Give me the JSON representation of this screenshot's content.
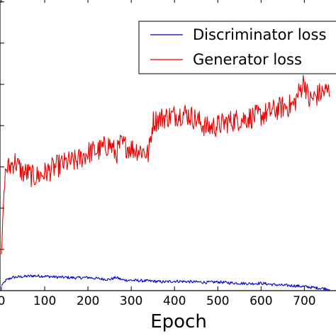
{
  "chart_data": {
    "type": "line",
    "xlabel": "Epoch",
    "ylabel": "",
    "title": "",
    "xlim": [
      0,
      760
    ],
    "ylim": [
      0,
      7.2
    ],
    "x_ticks": [
      "0",
      "100",
      "200",
      "300",
      "400",
      "500",
      "600",
      "700"
    ],
    "legend_placement": "top-right",
    "series": [
      {
        "name": "Discriminator loss",
        "color": "#0000cc",
        "x": [
          0,
          10,
          25,
          50,
          75,
          100,
          125,
          150,
          175,
          200,
          225,
          250,
          265,
          280,
          300,
          325,
          350,
          375,
          400,
          425,
          450,
          475,
          500,
          525,
          550,
          575,
          600,
          625,
          650,
          675,
          700,
          725,
          760
        ],
        "y": [
          0.12,
          0.25,
          0.32,
          0.34,
          0.36,
          0.35,
          0.33,
          0.32,
          0.31,
          0.32,
          0.29,
          0.27,
          0.32,
          0.26,
          0.25,
          0.24,
          0.23,
          0.21,
          0.23,
          0.22,
          0.21,
          0.2,
          0.21,
          0.19,
          0.18,
          0.17,
          0.18,
          0.15,
          0.13,
          0.12,
          0.1,
          0.07,
          0.04
        ]
      },
      {
        "name": "Generator loss",
        "color": "#ee0000",
        "x": [
          0,
          5,
          10,
          20,
          30,
          40,
          50,
          60,
          75,
          90,
          100,
          125,
          150,
          175,
          200,
          225,
          250,
          265,
          275,
          300,
          325,
          340,
          350,
          375,
          400,
          425,
          450,
          475,
          500,
          525,
          550,
          575,
          600,
          625,
          650,
          675,
          700,
          710,
          725,
          740,
          760
        ],
        "y": [
          0.8,
          2.2,
          2.95,
          3.0,
          3.15,
          3.0,
          2.85,
          2.85,
          2.75,
          2.8,
          2.85,
          3.0,
          3.1,
          3.15,
          3.35,
          3.4,
          3.55,
          3.3,
          3.55,
          3.45,
          3.4,
          3.3,
          4.1,
          4.2,
          4.25,
          4.3,
          4.15,
          3.95,
          4.0,
          4.1,
          4.15,
          4.2,
          4.25,
          4.35,
          4.45,
          4.5,
          5.1,
          4.6,
          4.7,
          4.8,
          4.85
        ]
      }
    ]
  }
}
